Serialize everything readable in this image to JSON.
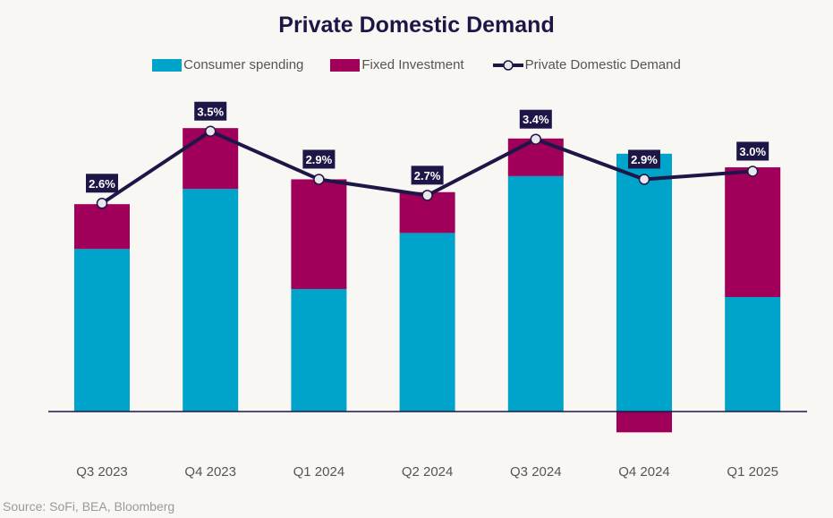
{
  "chart_data": {
    "type": "bar",
    "stacked": true,
    "title": "Private Domestic Demand",
    "xlabel": "",
    "ylabel": "",
    "categories": [
      "Q3 2023",
      "Q4 2023",
      "Q1 2024",
      "Q2 2024",
      "Q3 2024",
      "Q4 2024",
      "Q1 2025"
    ],
    "series": [
      {
        "name": "Consumer spending",
        "type": "bar",
        "color": "#00a3c9",
        "values": [
          2.03,
          2.78,
          1.53,
          2.23,
          2.94,
          3.22,
          1.43
        ]
      },
      {
        "name": "Fixed Investment",
        "type": "bar",
        "color": "#a0005a",
        "values": [
          0.56,
          0.76,
          1.37,
          0.51,
          0.47,
          -0.26,
          1.62
        ]
      },
      {
        "name": "Private Domestic Demand",
        "type": "line",
        "color": "#1e1646",
        "values": [
          2.6,
          3.5,
          2.9,
          2.7,
          3.4,
          2.9,
          3.0
        ],
        "labels": [
          "2.6%",
          "3.5%",
          "2.9%",
          "2.7%",
          "3.4%",
          "2.9%",
          "3.0%"
        ]
      }
    ],
    "ylim": [
      -0.5,
      3.7
    ],
    "grid": false,
    "legend": "top-center",
    "source": "Source: SoFi, BEA, Bloomberg"
  }
}
